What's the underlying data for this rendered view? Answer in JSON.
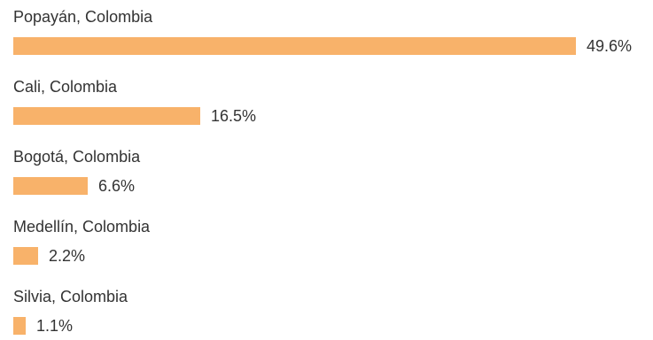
{
  "chart_data": {
    "type": "bar",
    "orientation": "horizontal",
    "categories": [
      "Popayán, Colombia",
      "Cali, Colombia",
      "Bogotá, Colombia",
      "Medellín, Colombia",
      "Silvia, Colombia"
    ],
    "values": [
      49.6,
      16.5,
      6.6,
      2.2,
      1.1
    ],
    "value_labels": [
      "49.6%",
      "16.5%",
      "6.6%",
      "2.2%",
      "1.1%"
    ],
    "title": "",
    "xlabel": "",
    "ylabel": "",
    "xlim": [
      0,
      49.6
    ],
    "grid": false,
    "legend": "none",
    "colors": {
      "bar": "#f8b26a",
      "text": "#333333"
    }
  }
}
